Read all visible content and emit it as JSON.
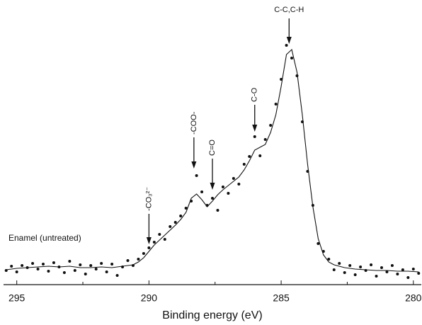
{
  "chart_data": {
    "type": "scatter",
    "x_label": "Binding energy (eV)",
    "sample_label": "Enamel (untreated)",
    "xlim": [
      295.5,
      279.7
    ],
    "ylim": [
      0,
      400
    ],
    "xticks": [
      295,
      290,
      285,
      280
    ],
    "xminor": [
      292.5,
      287.5,
      282.5
    ],
    "series": [
      {
        "kind": "points",
        "color": "#111111",
        "x": [
          295.4,
          295.2,
          295.0,
          294.8,
          294.6,
          294.4,
          294.2,
          294.0,
          293.8,
          293.6,
          293.4,
          293.2,
          293.0,
          292.8,
          292.6,
          292.4,
          292.2,
          292.0,
          291.8,
          291.6,
          291.4,
          291.2,
          291.0,
          290.8,
          290.6,
          290.4,
          290.2,
          290.0,
          289.8,
          289.6,
          289.4,
          289.2,
          289.0,
          288.8,
          288.6,
          288.4,
          288.2,
          288.0,
          287.8,
          287.6,
          287.4,
          287.2,
          287.0,
          286.8,
          286.6,
          286.4,
          286.2,
          286.0,
          285.8,
          285.6,
          285.4,
          285.2,
          285.0,
          284.8,
          284.6,
          284.4,
          284.2,
          284.0,
          283.8,
          283.6,
          283.4,
          283.2,
          283.0,
          282.8,
          282.6,
          282.4,
          282.2,
          282.0,
          281.8,
          281.6,
          281.4,
          281.2,
          281.0,
          280.8,
          280.6,
          280.4,
          280.2,
          280.0,
          279.8
        ],
        "values": [
          20,
          26,
          18,
          27,
          24,
          30,
          22,
          29,
          19,
          31,
          25,
          17,
          33,
          20,
          28,
          15,
          27,
          22,
          30,
          18,
          29,
          13,
          25,
          34,
          27,
          36,
          44,
          52,
          60,
          71,
          64,
          82,
          88,
          97,
          108,
          118,
          154,
          131,
          112,
          122,
          105,
          138,
          129,
          150,
          142,
          170,
          181,
          209,
          182,
          205,
          225,
          255,
          290,
          338,
          320,
          295,
          230,
          160,
          112,
          58,
          47,
          36,
          21,
          30,
          17,
          27,
          14,
          25,
          20,
          28,
          12,
          24,
          18,
          27,
          15,
          21,
          10,
          22,
          16
        ]
      },
      {
        "kind": "fit",
        "color": "#111111",
        "x": [
          295.4,
          295.0,
          294.6,
          294.2,
          293.8,
          293.4,
          293.0,
          292.6,
          292.2,
          291.8,
          291.4,
          291.0,
          290.6,
          290.4,
          290.2,
          290.0,
          289.8,
          289.6,
          289.4,
          289.2,
          289.0,
          288.8,
          288.6,
          288.4,
          288.2,
          288.0,
          287.8,
          287.6,
          287.4,
          287.2,
          287.0,
          286.8,
          286.6,
          286.4,
          286.2,
          286.0,
          285.8,
          285.6,
          285.4,
          285.2,
          285.0,
          284.8,
          284.6,
          284.4,
          284.2,
          284.0,
          283.8,
          283.6,
          283.4,
          283.2,
          283.0,
          282.6,
          282.2,
          281.8,
          281.4,
          281.0,
          280.6,
          280.2,
          279.8
        ],
        "values": [
          21,
          23,
          24,
          25,
          26,
          25,
          26,
          24,
          24,
          25,
          24,
          26,
          28,
          32,
          38,
          47,
          56,
          63,
          70,
          77,
          84,
          92,
          102,
          122,
          128,
          120,
          110,
          118,
          127,
          134,
          140,
          146,
          152,
          162,
          175,
          190,
          194,
          198,
          215,
          240,
          280,
          325,
          332,
          300,
          240,
          170,
          110,
          65,
          42,
          32,
          28,
          24,
          22,
          21,
          20,
          20,
          19,
          19,
          18
        ]
      }
    ],
    "annotations": [
      {
        "text": "-CO₃²⁻",
        "x": 290.0
      },
      {
        "text": "-COO-",
        "x": 288.3
      },
      {
        "text": "C=O",
        "x": 287.6
      },
      {
        "text": "C-O",
        "x": 286.0
      },
      {
        "text": "C-C,C-H",
        "x": 284.7
      }
    ]
  }
}
